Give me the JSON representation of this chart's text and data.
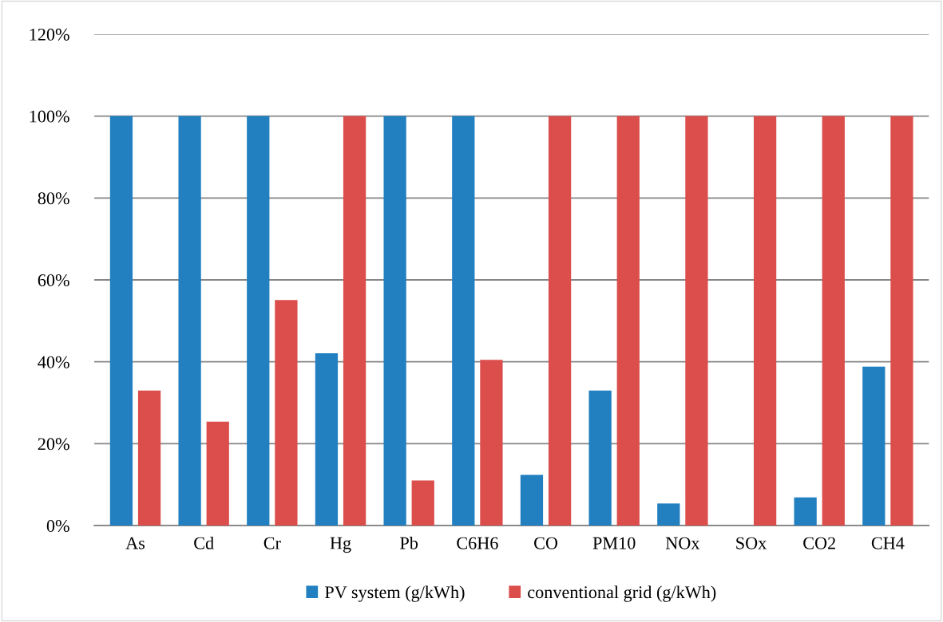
{
  "chart_data": {
    "type": "bar",
    "categories": [
      "As",
      "Cd",
      "Cr",
      "Hg",
      "Pb",
      "C6H6",
      "CO",
      "PM10",
      "NOx",
      "SOx",
      "CO2",
      "CH4"
    ],
    "series": [
      {
        "name": "PV system (g/kWh)",
        "color": "#2280c0",
        "values": [
          100,
          100,
          100,
          42.1,
          100,
          100,
          12.4,
          33,
          5.4,
          0,
          6.9,
          38.8
        ]
      },
      {
        "name": "conventional grid (g/kWh)",
        "color": "#dc4e4c",
        "values": [
          33,
          25.4,
          55.1,
          100,
          11,
          40.5,
          100,
          100,
          100,
          100,
          100,
          100
        ]
      }
    ],
    "ylim": [
      0,
      120
    ],
    "yticks": [
      {
        "value": 0,
        "label": "0%"
      },
      {
        "value": 20,
        "label": "20%"
      },
      {
        "value": 40,
        "label": "40%"
      },
      {
        "value": 60,
        "label": "60%"
      },
      {
        "value": 80,
        "label": "80%"
      },
      {
        "value": 100,
        "label": "100%"
      },
      {
        "value": 120,
        "label": "120%"
      }
    ],
    "grid": "y",
    "legend": "bottom"
  }
}
